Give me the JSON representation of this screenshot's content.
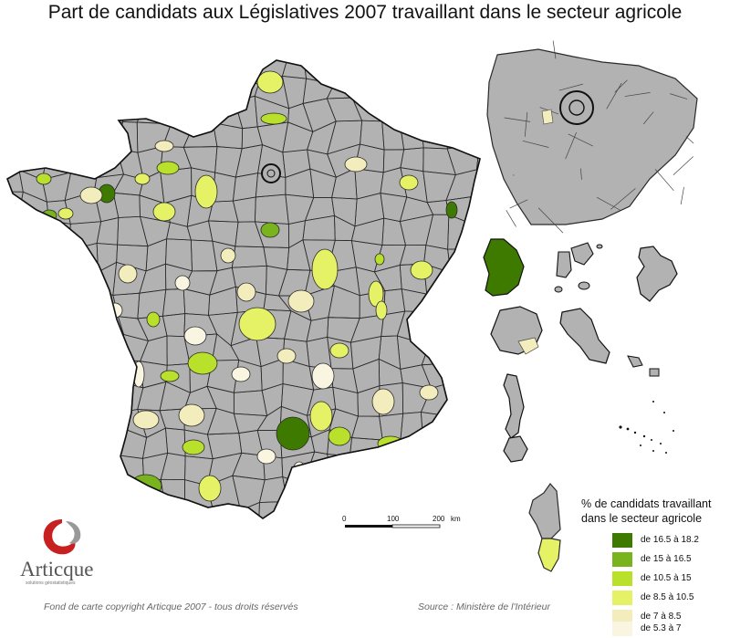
{
  "title": "Part de candidats aux Législatives 2007 travaillant dans le secteur agricole",
  "colors": {
    "no_data": "#b2b2b2",
    "border": "#2a2a2a",
    "c1": "#3f7a00",
    "c2": "#79b31d",
    "c3": "#b9e02a",
    "c4": "#e6f266",
    "c5": "#f3edbd",
    "c6": "#faf5e1"
  },
  "legend": {
    "title_line1": "% de candidats travaillant",
    "title_line2": "dans le secteur agricole",
    "classes": [
      {
        "label": "de 16.5 à 18.2",
        "color": "#3f7a00"
      },
      {
        "label": "de 15 à 16.5",
        "color": "#79b31d"
      },
      {
        "label": "de 10.5 à 15",
        "color": "#b9e02a"
      },
      {
        "label": "de 8.5 à 10.5",
        "color": "#e6f266"
      },
      {
        "label": "de 7 à 8.5",
        "color": "#f3edbd"
      },
      {
        "label": "de 5.3 à 7",
        "color": "#faf5e1"
      }
    ]
  },
  "scale": {
    "ticks": [
      "0",
      "100",
      "200"
    ],
    "unit": "km"
  },
  "logo": {
    "name": "Articque",
    "tagline": "solutions géostatistiques"
  },
  "footer": {
    "copyright": "Fond de carte copyright Articque 2007 - tous droits réservés",
    "source": "Source : Ministère de l'Intérieur"
  }
}
